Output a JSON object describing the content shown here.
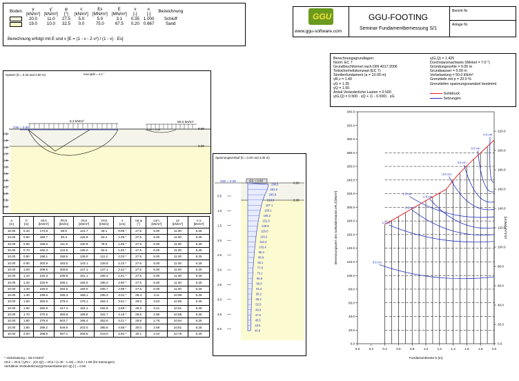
{
  "soil_table": {
    "headers": [
      "Boden",
      "γ\n[kN/m³]",
      "γ'\n[kN/m³]",
      "φ\n[°]",
      "c\n[kN/m²]",
      "Es\n[MN/m²]",
      "E\n[MN/m²]",
      "ν\n[-]",
      "κ\n[-]",
      "Bezeichnung"
    ],
    "rows": [
      {
        "swatch": "#f7f7e0",
        "values": [
          "20.0",
          "11.0",
          "27.5",
          "5.0",
          "5.0",
          "3.1",
          "0.35",
          "1.000",
          "Schluff"
        ]
      },
      {
        "swatch": "#fbf8c8",
        "values": [
          "19.0",
          "10.0",
          "32.5",
          "0.0",
          "75.0",
          "67.5",
          "0.20",
          "0.667",
          "Sand"
        ]
      }
    ],
    "note": "Berechnung erfolgt mit E und ν   [E = (1 - ν - 2·ν²) / (1 - ν) · Es]"
  },
  "header": {
    "logo_text": "GGU",
    "url": "www.ggu-software.com",
    "title": "GGU-FOOTING",
    "subtitle": "Seminar Fundamentbemessung S/1",
    "bericht": "Bericht Nr.",
    "anlage": "Anlage Nr."
  },
  "params": {
    "left": [
      "Berechnungsgrundlagen:",
      "Norm: EC 7",
      "Grundbruchformel nach DIN 4017:2006",
      "Teilsicherheitskonzept (EC 7)",
      "Streifenfundament (a = 10.00 m)",
      "γR,v = 1.40",
      "γG = 1.35",
      "γQ = 1.50",
      "Anteil Veränderliche Lasten = 0.500",
      "γ(G,Q) = 0.500 · γQ + (1 - 0.500) · γG"
    ],
    "right": [
      "γ(G,Q) = 1.425",
      "Durchstanznachweis (Winkel = 7.0 °)",
      "Gründungssohle = 0.00 m",
      "Grundwasser = 0.00 m",
      "Vorbelastung = 50.0 kN/m²",
      "Grenztiefe mit p = 20.0 %",
      "Grenztiefen spannungsvariabel bestimmt"
    ],
    "legend": [
      {
        "label": "Sohldruck",
        "color": "#e02020"
      },
      {
        "label": "Setzungen",
        "color": "#2030c0"
      }
    ]
  },
  "system": {
    "title": "System (b = 0.40 and 2.00 m)",
    "dphi": "max dphi = 4.1 °",
    "gw": "GW = 0.00",
    "load1": "6.2 kN/m²",
    "load2": "50.0 kN/m²",
    "found_label": "0.00 = 0.00",
    "top_label": "0.00",
    "layer_label": "2.00",
    "depths": [
      "0.5",
      "1.0",
      "1.5",
      "2.0",
      "2.5",
      "3.0",
      "3.5",
      "4.0",
      "4.5",
      "5.0",
      "5.5",
      "6.0"
    ]
  },
  "stress": {
    "title": "Spannungsverlauf (b = 0.40 und 2.00 m)",
    "gw": "GW = 0.00",
    "gs": "GS = 0.00",
    "top": "0.00",
    "layer": "2.00",
    "depths": [
      "0.5",
      "1.0",
      "1.5",
      "2.0",
      "2.5",
      "3.0",
      "3.5",
      "4.0",
      "4.5",
      "5.0"
    ],
    "values": [
      "298.5",
      "281.9",
      "245.9",
      "218.0",
      "197.1",
      "180.1",
      "165.2",
      "151.9",
      "139.9",
      "129.0",
      "119.2",
      "110.4",
      "102.4",
      "95.3",
      "88.9",
      "83.1",
      "77.8",
      "73.1",
      "68.8",
      "65.0",
      "61.4",
      "58.2",
      "55.2",
      "52.5",
      "49.9",
      "47.6",
      "45.5",
      "43.5",
      "40.8"
    ]
  },
  "data_table": {
    "headers": [
      "a\n[m]",
      "b\n[m]",
      "σ0,k\n[kN/m²]",
      "R0,k\n[kN/m]",
      "σ0,k\n[kN/m²]",
      "V0,k\n[kN/m]",
      "s\n[cm]",
      "cal φ\n[°]",
      "cal c\n[kN/m²]",
      "γ2\n[kN/m³]",
      "σ ü\n[kN/m²]"
    ],
    "rows": [
      [
        "10.00",
        "0.40",
        "174.8",
        "69.9",
        "122.7",
        "49.1",
        "0.96 *",
        "27.5",
        "5.00",
        "11.00",
        "6.25"
      ],
      [
        "10.00",
        "0.50",
        "180.7",
        "90.3",
        "126.8",
        "63.4",
        "1.25 *",
        "27.5",
        "5.00",
        "11.00",
        "6.25"
      ],
      [
        "10.00",
        "0.60",
        "186.5",
        "111.9",
        "130.9",
        "78.5",
        "1.55 *",
        "27.5",
        "5.00",
        "11.00",
        "6.25"
      ],
      [
        "10.00",
        "0.70",
        "192.3",
        "134.6",
        "135.0",
        "94.5",
        "1.82 *",
        "27.5",
        "5.00",
        "11.00",
        "6.25"
      ],
      [
        "10.00",
        "0.80",
        "198.1",
        "158.5",
        "139.0",
        "111.2",
        "2.03 *",
        "27.5",
        "5.00",
        "11.00",
        "6.25"
      ],
      [
        "10.00",
        "0.90",
        "203.9",
        "183.5",
        "143.1",
        "128.8",
        "2.23 *",
        "27.5",
        "5.00",
        "11.00",
        "6.25"
      ],
      [
        "10.00",
        "1.00",
        "209.6",
        "209.6",
        "147.1",
        "147.1",
        "2.42 *",
        "27.5",
        "5.00",
        "11.00",
        "6.25"
      ],
      [
        "10.00",
        "1.10",
        "215.3",
        "236.8",
        "151.1",
        "166.2",
        "2.61 *",
        "27.5",
        "5.00",
        "11.00",
        "6.25"
      ],
      [
        "10.00",
        "1.20",
        "220.9",
        "265.1",
        "155.0",
        "186.0",
        "2.80 *",
        "27.5",
        "5.00",
        "11.00",
        "6.25"
      ],
      [
        "10.00",
        "1.30",
        "226.5",
        "294.5",
        "159.0",
        "206.7",
        "2.98 *",
        "27.5",
        "5.00",
        "11.00",
        "6.25"
      ],
      [
        "10.00",
        "1.40",
        "239.5",
        "335.3",
        "168.1",
        "235.3",
        "3.31 *",
        "28.4",
        "4.11",
        "10.99",
        "6.25"
      ],
      [
        "10.00",
        "1.50",
        "250.9",
        "376.4",
        "176.1",
        "264.1",
        "3.61 *",
        "29.0",
        "3.54",
        "10.95",
        "6.25"
      ],
      [
        "10.00",
        "1.60",
        "260.9",
        "417.4",
        "183.1",
        "292.9",
        "3.88 *",
        "29.3",
        "3.21",
        "10.91",
        "6.25"
      ],
      [
        "10.00",
        "1.70",
        "270.5",
        "459.8",
        "189.8",
        "322.7",
        "4.15 *",
        "29.6",
        "2.96",
        "10.88",
        "6.25"
      ],
      [
        "10.00",
        "1.80",
        "279.8",
        "503.7",
        "196.4",
        "353.5",
        "4.41 *",
        "29.8",
        "2.76",
        "10.84",
        "6.25"
      ],
      [
        "10.00",
        "1.90",
        "289.2",
        "549.5",
        "203.0",
        "385.6",
        "4.68 *",
        "30.0",
        "2.59",
        "10.81",
        "6.25"
      ],
      [
        "10.00",
        "2.00",
        "298.5",
        "597.1",
        "209.5",
        "419.0",
        "4.94 *",
        "30.1",
        "2.44",
        "10.78",
        "6.25"
      ]
    ],
    "notes": [
      "* Vorbelastung = 50.0 kN/m²",
      "σ0,k = σ0,k / (γR,v · γ(G,Q)) = σ0,k / (1.40 · 1.43) = σ0,k / 1.99  (für Setzungen)",
      "Verhältnis Veränderliche(Q)/Gesamtlasten(G+Q) [-] = 0.50"
    ]
  },
  "chart_data": {
    "type": "line",
    "xlabel": "Fundamentbreite b [m]",
    "ylabel": "Bemessungswert des Sohlwiderstands σR,d [kN/m²]",
    "ylabel_right": "σ0,k,zul [kN/m²]",
    "xlim": [
      0.0,
      2.0
    ],
    "ylim": [
      0,
      340
    ],
    "ylim_right": [
      0,
      240
    ],
    "x_ticks": [
      "0.0",
      "0.2",
      "0.4",
      "0.6",
      "0.8",
      "1.0",
      "1.2",
      "1.4",
      "1.6",
      "1.8",
      "2.0"
    ],
    "y_ticks": [
      "0.0",
      "20.0",
      "40.0",
      "60.0",
      "80.0",
      "100.0",
      "120.0",
      "140.0",
      "160.0",
      "180.0",
      "200.0",
      "220.0",
      "240.0",
      "260.0",
      "280.0",
      "300.0",
      "320.0",
      "340.0"
    ],
    "y_ticks_right": [
      "0.0",
      "20.0",
      "40.0",
      "60.0",
      "80.0",
      "100.0",
      "120.0",
      "140.0",
      "160.0",
      "180.0",
      "200.0",
      "220.0"
    ],
    "sohldruck": {
      "x": [
        0.4,
        0.5,
        0.6,
        0.7,
        0.8,
        0.9,
        1.0,
        1.1,
        1.2,
        1.3,
        1.4,
        1.5,
        1.6,
        1.7,
        1.8,
        1.9,
        2.0
      ],
      "y": [
        174.8,
        180.7,
        186.5,
        192.3,
        198.1,
        203.9,
        209.6,
        215.3,
        220.9,
        226.5,
        239.5,
        250.9,
        260.9,
        270.5,
        279.8,
        289.2,
        298.5
      ]
    },
    "settlement_labels": [
      {
        "label": "0.5 cm",
        "x": 0.22,
        "y": 118
      },
      {
        "label": "1.0 cm",
        "x": 0.36,
        "y": 176
      },
      {
        "label": "1.5 cm",
        "x": 0.66,
        "y": 218
      },
      {
        "label": "2.0 cm",
        "x": 0.7,
        "y": 198
      },
      {
        "label": "2.5 cm",
        "x": 0.96,
        "y": 214
      },
      {
        "label": "3.0 cm",
        "x": 1.24,
        "y": 247
      },
      {
        "label": "3.5 cm",
        "x": 1.46,
        "y": 264
      },
      {
        "label": "4.0 cm",
        "x": 1.66,
        "y": 285
      },
      {
        "label": "4.5 cm",
        "x": 1.84,
        "y": 305
      }
    ],
    "legend": [
      "Sohldruck",
      "Setzungen"
    ]
  }
}
